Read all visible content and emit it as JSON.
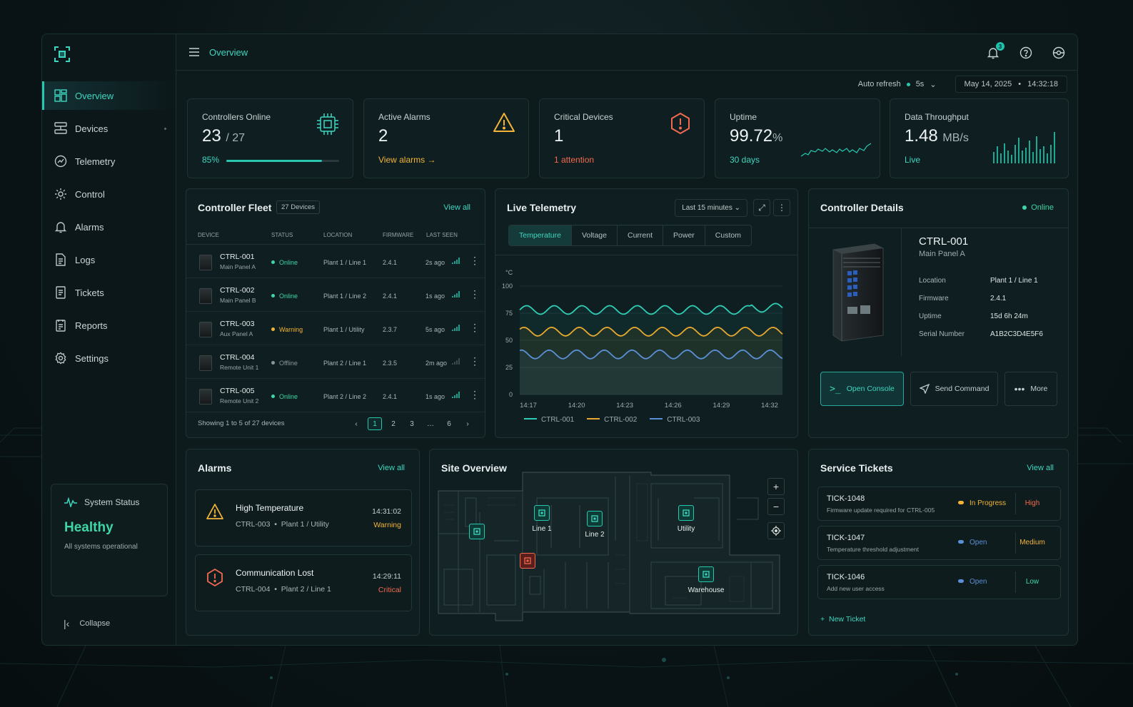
{
  "colors": {
    "accent": "#27c7b0",
    "warning": "#f2b337",
    "critical": "#f16a4f",
    "online": "#3ed6a6"
  },
  "nav": {
    "items": [
      {
        "label": "Overview",
        "icon": "dashboard-icon"
      },
      {
        "label": "Devices",
        "icon": "devices-icon"
      },
      {
        "label": "Telemetry",
        "icon": "telemetry-icon"
      },
      {
        "label": "Control",
        "icon": "gear-icon"
      },
      {
        "label": "Alarms",
        "icon": "bell-icon"
      },
      {
        "label": "Logs",
        "icon": "document-icon"
      },
      {
        "label": "Tickets",
        "icon": "ticket-icon"
      },
      {
        "label": "Reports",
        "icon": "report-icon"
      },
      {
        "label": "Settings",
        "icon": "settings-icon"
      }
    ]
  },
  "system": {
    "title": "System Status",
    "state": "Healthy",
    "sub": "All systems operational"
  },
  "collapse": "Collapse",
  "header": {
    "title": "Overview",
    "notifications": "3"
  },
  "subbar": {
    "auto_refresh": "Auto refresh",
    "interval": "5s",
    "date": "May 14, 2025",
    "time": "14:32:18"
  },
  "kpis": {
    "controllers": {
      "label": "Controllers Online",
      "value": "23",
      "total": "/ 27",
      "percent": "85%",
      "progress": 0.85
    },
    "alarms": {
      "label": "Active Alarms",
      "value": "2",
      "link": "View alarms →"
    },
    "critical": {
      "label": "Critical Devices",
      "value": "1",
      "sub": "1 attention"
    },
    "uptime": {
      "label": "Uptime",
      "value": "99.72",
      "unit": "%",
      "sub": "30 days"
    },
    "throughput": {
      "label": "Data Throughput",
      "value": "1.48",
      "unit": "MB/s",
      "sub": "Live"
    }
  },
  "fleet": {
    "title": "Controller Fleet",
    "count": "27 Devices",
    "view_all": "View all",
    "columns": [
      "DEVICE",
      "STATUS",
      "LOCATION",
      "FIRMWARE",
      "LAST SEEN"
    ],
    "rows": [
      {
        "name": "CTRL-001",
        "sub": "Main Panel A",
        "status": "Online",
        "location": "Plant 1 / Line 1",
        "fw": "2.4.1",
        "seen": "2s ago"
      },
      {
        "name": "CTRL-002",
        "sub": "Main Panel B",
        "status": "Online",
        "location": "Plant 1 / Line 2",
        "fw": "2.4.1",
        "seen": "1s ago"
      },
      {
        "name": "CTRL-003",
        "sub": "Aux Panel A",
        "status": "Warning",
        "location": "Plant 1 / Utility",
        "fw": "2.3.7",
        "seen": "5s ago"
      },
      {
        "name": "CTRL-004",
        "sub": "Remote Unit 1",
        "status": "Offline",
        "location": "Plant 2 / Line 1",
        "fw": "2.3.5",
        "seen": "2m ago"
      },
      {
        "name": "CTRL-005",
        "sub": "Remote Unit 2",
        "status": "Online",
        "location": "Plant 2 / Line 2",
        "fw": "2.4.1",
        "seen": "1s ago"
      }
    ],
    "showing": "Showing 1 to 5 of 27 devices",
    "pages": [
      "‹",
      "1",
      "2",
      "3",
      "…",
      "6",
      "›"
    ]
  },
  "telemetry": {
    "title": "Live Telemetry",
    "range": "Last 15 minutes",
    "tabs": [
      "Temperature",
      "Voltage",
      "Current",
      "Power",
      "Custom"
    ]
  },
  "chart_data": {
    "type": "line",
    "ylabel": "°C",
    "ylim": [
      0,
      100
    ],
    "yticks": [
      "100",
      "75",
      "50",
      "25",
      "0"
    ],
    "x": [
      "14:17",
      "14:20",
      "14:23",
      "14:26",
      "14:29",
      "14:32"
    ],
    "series": [
      {
        "name": "CTRL-001",
        "color": "#2fcdb5",
        "base": 78,
        "amp": 4
      },
      {
        "name": "CTRL-002",
        "color": "#e8a930",
        "base": 58,
        "amp": 4
      },
      {
        "name": "CTRL-003",
        "color": "#5b8fd6",
        "base": 37,
        "amp": 4
      }
    ]
  },
  "details": {
    "title": "Controller Details",
    "status": "Online",
    "id": "CTRL-001",
    "sub": "Main Panel A",
    "fields": [
      {
        "k": "Location",
        "v": "Plant 1 / Line 1"
      },
      {
        "k": "Firmware",
        "v": "2.4.1"
      },
      {
        "k": "Uptime",
        "v": "15d 6h 24m"
      },
      {
        "k": "Serial Number",
        "v": "A1B2C3D4E5F6"
      }
    ],
    "actions": {
      "console": "Open Console",
      "send": "Send Command",
      "more": "More"
    }
  },
  "alarms": {
    "title": "Alarms",
    "view_all": "View all",
    "items": [
      {
        "title": "High Temperature",
        "device": "CTRL-003",
        "loc": "Plant 1 / Utility",
        "time": "14:31:02",
        "level": "Warning"
      },
      {
        "title": "Communication Lost",
        "device": "CTRL-004",
        "loc": "Plant 2 / Line 1",
        "time": "14:29:11",
        "level": "Critical"
      }
    ]
  },
  "site": {
    "title": "Site Overview",
    "labels": [
      "Line 1",
      "Line 2",
      "Utility",
      "Warehouse"
    ]
  },
  "tickets": {
    "title": "Service Tickets",
    "view_all": "View all",
    "items": [
      {
        "id": "TICK-1048",
        "desc": "Firmware update required for CTRL-005",
        "status": "In Progress",
        "priority": "High"
      },
      {
        "id": "TICK-1047",
        "desc": "Temperature threshold adjustment",
        "status": "Open",
        "priority": "Medium"
      },
      {
        "id": "TICK-1046",
        "desc": "Add new user access",
        "status": "Open",
        "priority": "Low"
      }
    ],
    "new": "New Ticket"
  }
}
